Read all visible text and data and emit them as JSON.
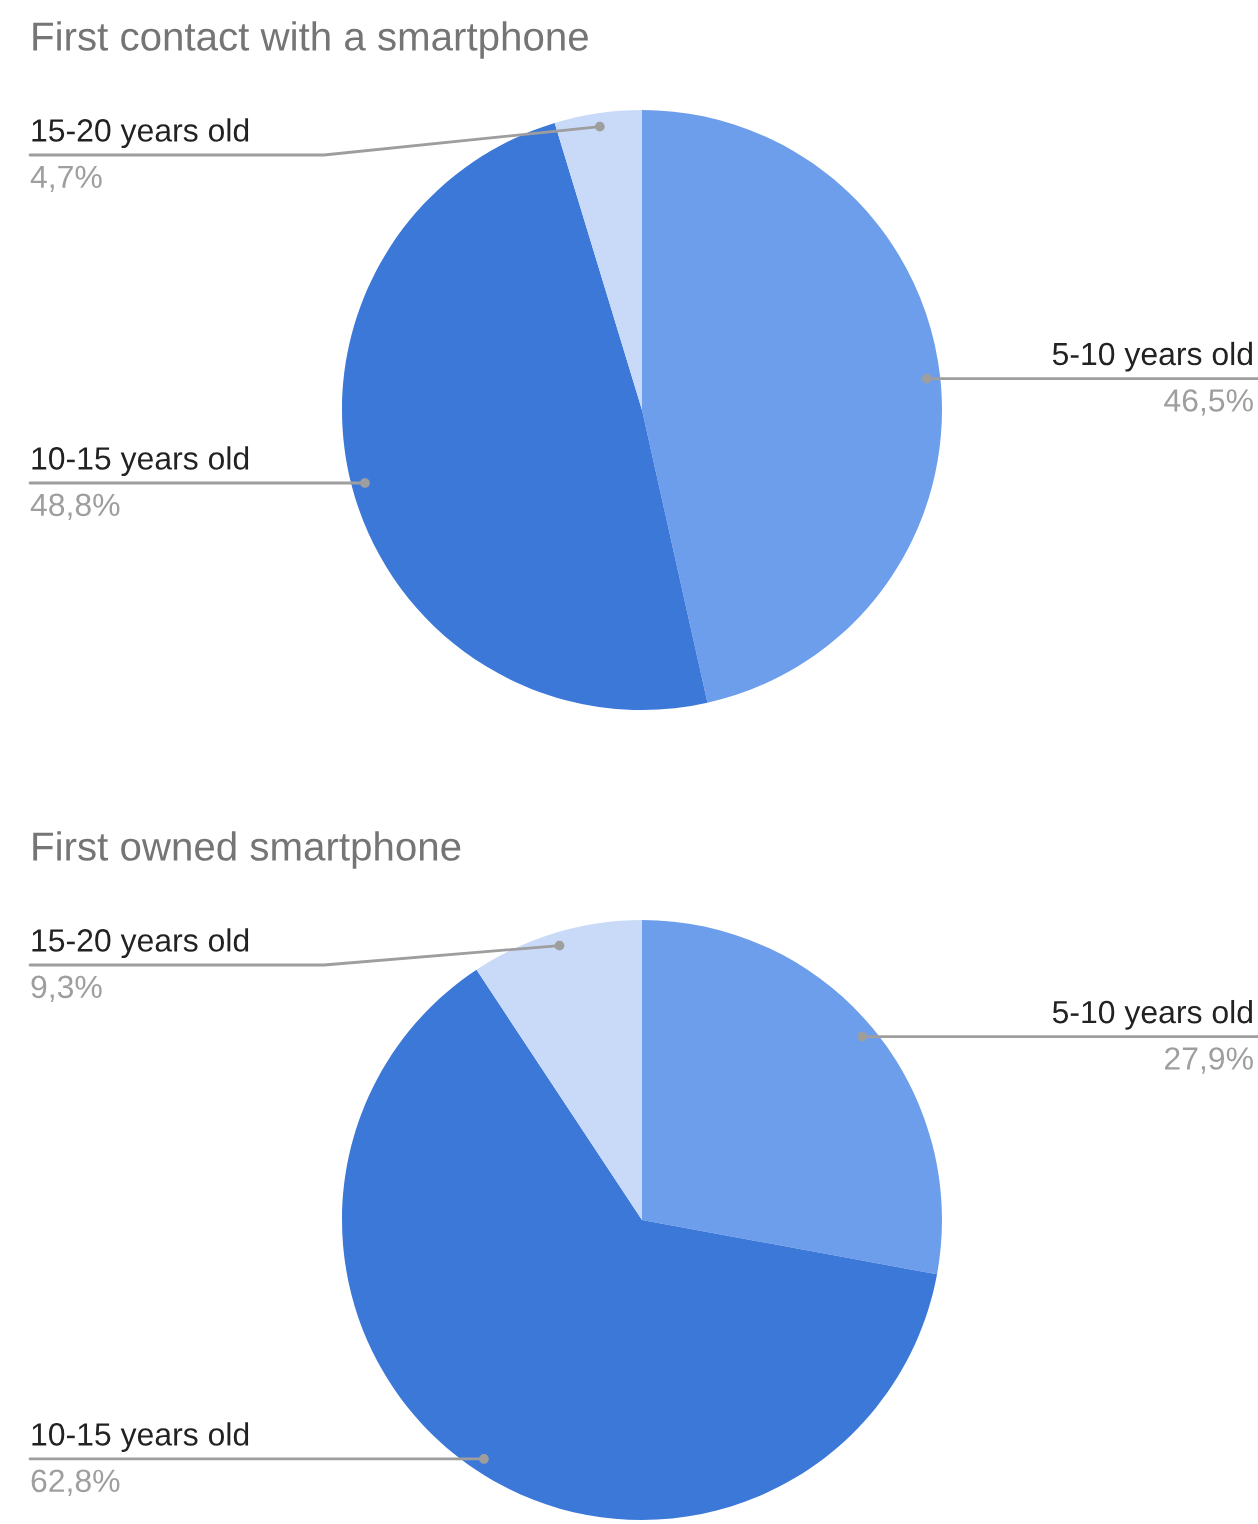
{
  "chart_data": [
    {
      "type": "pie",
      "title": "First contact with a smartphone",
      "categories": [
        "5-10 years old",
        "10-15 years old",
        "15-20 years old"
      ],
      "values": [
        46.5,
        48.8,
        4.7
      ],
      "colors": [
        "#6d9eeb",
        "#3c78d8",
        "#c9daf8"
      ],
      "value_labels": [
        "46,5%",
        "48,8%",
        "4,7%"
      ]
    },
    {
      "type": "pie",
      "title": "First owned smartphone",
      "categories": [
        "5-10 years old",
        "10-15 years old",
        "15-20 years old"
      ],
      "values": [
        27.9,
        62.8,
        9.3
      ],
      "colors": [
        "#6d9eeb",
        "#3c78d8",
        "#c9daf8"
      ],
      "value_labels": [
        "27,9%",
        "62,8%",
        "9,3%"
      ]
    }
  ]
}
